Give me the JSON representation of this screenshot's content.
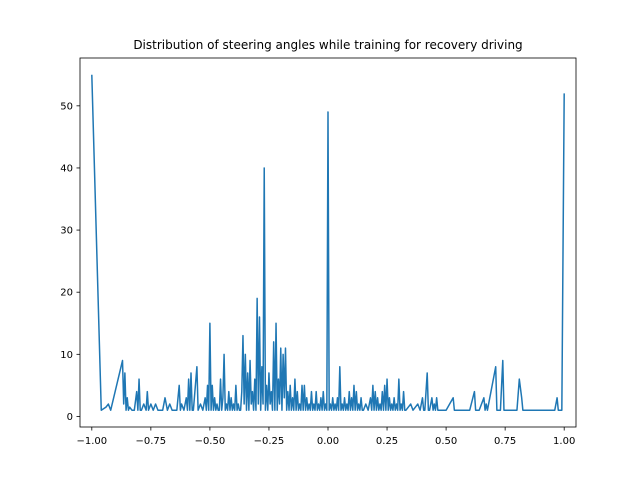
{
  "chart_data": {
    "type": "line",
    "title": "Distribution of steering angles while training for recovery driving",
    "xlabel": "",
    "ylabel": "",
    "xlim": [
      -1.05,
      1.05
    ],
    "ylim": [
      -1.7,
      57.7
    ],
    "x_ticks": [
      -1.0,
      -0.75,
      -0.5,
      -0.25,
      0.0,
      0.25,
      0.5,
      0.75,
      1.0
    ],
    "x_tick_labels": [
      "−1.00",
      "−0.75",
      "−0.50",
      "−0.25",
      "0.00",
      "0.25",
      "0.50",
      "0.75",
      "1.00"
    ],
    "y_ticks": [
      0,
      10,
      20,
      30,
      40,
      50
    ],
    "y_tick_labels": [
      "0",
      "10",
      "20",
      "30",
      "40",
      "50"
    ],
    "grid": false,
    "series": [
      {
        "color": "#1f77b4",
        "points": [
          [
            -1.0,
            55
          ],
          [
            -0.96,
            1
          ],
          [
            -0.94,
            1.5
          ],
          [
            -0.93,
            2
          ],
          [
            -0.92,
            1
          ],
          [
            -0.87,
            9
          ],
          [
            -0.865,
            2
          ],
          [
            -0.86,
            7
          ],
          [
            -0.855,
            1
          ],
          [
            -0.85,
            3
          ],
          [
            -0.845,
            1
          ],
          [
            -0.84,
            1.5
          ],
          [
            -0.83,
            1
          ],
          [
            -0.82,
            1
          ],
          [
            -0.81,
            4
          ],
          [
            -0.805,
            1
          ],
          [
            -0.8,
            6
          ],
          [
            -0.795,
            1
          ],
          [
            -0.79,
            1
          ],
          [
            -0.78,
            2
          ],
          [
            -0.77,
            1
          ],
          [
            -0.765,
            4
          ],
          [
            -0.76,
            1
          ],
          [
            -0.75,
            2
          ],
          [
            -0.74,
            1
          ],
          [
            -0.73,
            2
          ],
          [
            -0.72,
            1
          ],
          [
            -0.7,
            1
          ],
          [
            -0.69,
            3
          ],
          [
            -0.68,
            1
          ],
          [
            -0.67,
            2
          ],
          [
            -0.66,
            1
          ],
          [
            -0.65,
            1
          ],
          [
            -0.64,
            1
          ],
          [
            -0.63,
            5
          ],
          [
            -0.625,
            1
          ],
          [
            -0.62,
            2
          ],
          [
            -0.61,
            1
          ],
          [
            -0.6,
            3
          ],
          [
            -0.595,
            1
          ],
          [
            -0.59,
            6
          ],
          [
            -0.585,
            1
          ],
          [
            -0.58,
            7
          ],
          [
            -0.575,
            1
          ],
          [
            -0.57,
            1
          ],
          [
            -0.555,
            8
          ],
          [
            -0.55,
            1
          ],
          [
            -0.54,
            2
          ],
          [
            -0.53,
            1
          ],
          [
            -0.52,
            3
          ],
          [
            -0.515,
            1
          ],
          [
            -0.51,
            5
          ],
          [
            -0.505,
            1
          ],
          [
            -0.5,
            15
          ],
          [
            -0.495,
            1
          ],
          [
            -0.49,
            5
          ],
          [
            -0.485,
            1
          ],
          [
            -0.48,
            3
          ],
          [
            -0.475,
            1
          ],
          [
            -0.47,
            2
          ],
          [
            -0.465,
            1
          ],
          [
            -0.46,
            1
          ],
          [
            -0.455,
            6
          ],
          [
            -0.45,
            1
          ],
          [
            -0.445,
            3
          ],
          [
            -0.44,
            10
          ],
          [
            -0.435,
            1
          ],
          [
            -0.43,
            2
          ],
          [
            -0.425,
            1
          ],
          [
            -0.42,
            4
          ],
          [
            -0.415,
            1
          ],
          [
            -0.41,
            3
          ],
          [
            -0.405,
            1
          ],
          [
            -0.4,
            2
          ],
          [
            -0.395,
            1
          ],
          [
            -0.39,
            5
          ],
          [
            -0.385,
            1
          ],
          [
            -0.38,
            2
          ],
          [
            -0.375,
            1
          ],
          [
            -0.37,
            1
          ],
          [
            -0.365,
            4
          ],
          [
            -0.36,
            13
          ],
          [
            -0.355,
            2
          ],
          [
            -0.35,
            10
          ],
          [
            -0.345,
            1
          ],
          [
            -0.34,
            7
          ],
          [
            -0.335,
            1
          ],
          [
            -0.33,
            9
          ],
          [
            -0.325,
            2
          ],
          [
            -0.32,
            4
          ],
          [
            -0.315,
            1
          ],
          [
            -0.31,
            6
          ],
          [
            -0.305,
            1
          ],
          [
            -0.3,
            19
          ],
          [
            -0.295,
            2
          ],
          [
            -0.29,
            16
          ],
          [
            -0.285,
            1
          ],
          [
            -0.28,
            8
          ],
          [
            -0.275,
            2
          ],
          [
            -0.27,
            40
          ],
          [
            -0.265,
            1
          ],
          [
            -0.26,
            5
          ],
          [
            -0.255,
            1
          ],
          [
            -0.25,
            7
          ],
          [
            -0.245,
            2
          ],
          [
            -0.24,
            4
          ],
          [
            -0.235,
            1
          ],
          [
            -0.23,
            12
          ],
          [
            -0.225,
            1
          ],
          [
            -0.22,
            15
          ],
          [
            -0.215,
            1
          ],
          [
            -0.21,
            6
          ],
          [
            -0.205,
            2
          ],
          [
            -0.2,
            11
          ],
          [
            -0.195,
            1
          ],
          [
            -0.19,
            10
          ],
          [
            -0.185,
            3
          ],
          [
            -0.18,
            11
          ],
          [
            -0.175,
            1
          ],
          [
            -0.17,
            4
          ],
          [
            -0.165,
            1
          ],
          [
            -0.16,
            5
          ],
          [
            -0.155,
            1
          ],
          [
            -0.15,
            3
          ],
          [
            -0.145,
            1
          ],
          [
            -0.14,
            6
          ],
          [
            -0.135,
            1
          ],
          [
            -0.13,
            4
          ],
          [
            -0.125,
            1
          ],
          [
            -0.12,
            2
          ],
          [
            -0.115,
            1
          ],
          [
            -0.11,
            5
          ],
          [
            -0.105,
            1
          ],
          [
            -0.1,
            5
          ],
          [
            -0.095,
            1
          ],
          [
            -0.09,
            3
          ],
          [
            -0.085,
            1
          ],
          [
            -0.08,
            2
          ],
          [
            -0.075,
            1
          ],
          [
            -0.07,
            4
          ],
          [
            -0.065,
            1
          ],
          [
            -0.06,
            2
          ],
          [
            -0.055,
            1
          ],
          [
            -0.05,
            4
          ],
          [
            -0.045,
            1
          ],
          [
            -0.04,
            2
          ],
          [
            -0.035,
            1
          ],
          [
            -0.03,
            3
          ],
          [
            -0.025,
            1
          ],
          [
            -0.02,
            4
          ],
          [
            -0.015,
            1
          ],
          [
            -0.01,
            2
          ],
          [
            -0.005,
            1
          ],
          [
            0.0,
            49
          ],
          [
            0.005,
            1
          ],
          [
            0.01,
            2
          ],
          [
            0.015,
            1
          ],
          [
            0.02,
            3
          ],
          [
            0.025,
            1
          ],
          [
            0.03,
            2
          ],
          [
            0.035,
            1
          ],
          [
            0.04,
            3
          ],
          [
            0.045,
            1
          ],
          [
            0.05,
            8
          ],
          [
            0.055,
            1
          ],
          [
            0.06,
            2
          ],
          [
            0.065,
            1
          ],
          [
            0.07,
            3
          ],
          [
            0.075,
            1
          ],
          [
            0.08,
            2
          ],
          [
            0.085,
            1
          ],
          [
            0.09,
            4
          ],
          [
            0.095,
            1
          ],
          [
            0.1,
            3
          ],
          [
            0.105,
            1
          ],
          [
            0.11,
            5
          ],
          [
            0.115,
            1
          ],
          [
            0.12,
            4
          ],
          [
            0.125,
            1
          ],
          [
            0.13,
            2
          ],
          [
            0.135,
            1
          ],
          [
            0.14,
            3
          ],
          [
            0.145,
            1
          ],
          [
            0.15,
            1
          ],
          [
            0.16,
            2
          ],
          [
            0.17,
            1
          ],
          [
            0.18,
            3
          ],
          [
            0.185,
            1
          ],
          [
            0.19,
            5
          ],
          [
            0.195,
            1
          ],
          [
            0.2,
            4
          ],
          [
            0.205,
            1
          ],
          [
            0.21,
            3
          ],
          [
            0.215,
            1
          ],
          [
            0.22,
            2
          ],
          [
            0.225,
            1
          ],
          [
            0.23,
            4
          ],
          [
            0.235,
            1
          ],
          [
            0.24,
            5
          ],
          [
            0.245,
            1
          ],
          [
            0.25,
            6
          ],
          [
            0.255,
            1
          ],
          [
            0.26,
            3
          ],
          [
            0.265,
            1
          ],
          [
            0.27,
            2
          ],
          [
            0.275,
            1
          ],
          [
            0.28,
            3
          ],
          [
            0.285,
            1
          ],
          [
            0.29,
            2
          ],
          [
            0.295,
            1
          ],
          [
            0.3,
            6
          ],
          [
            0.305,
            1
          ],
          [
            0.31,
            2
          ],
          [
            0.315,
            1
          ],
          [
            0.32,
            4
          ],
          [
            0.325,
            1
          ],
          [
            0.33,
            1
          ],
          [
            0.35,
            2
          ],
          [
            0.36,
            1
          ],
          [
            0.38,
            2
          ],
          [
            0.39,
            1
          ],
          [
            0.4,
            3
          ],
          [
            0.405,
            1
          ],
          [
            0.41,
            1
          ],
          [
            0.42,
            7
          ],
          [
            0.425,
            1
          ],
          [
            0.43,
            1
          ],
          [
            0.44,
            3
          ],
          [
            0.445,
            1
          ],
          [
            0.45,
            2
          ],
          [
            0.455,
            1
          ],
          [
            0.46,
            3
          ],
          [
            0.465,
            1
          ],
          [
            0.5,
            1
          ],
          [
            0.53,
            3
          ],
          [
            0.535,
            1
          ],
          [
            0.6,
            1
          ],
          [
            0.62,
            4
          ],
          [
            0.625,
            1
          ],
          [
            0.64,
            1
          ],
          [
            0.66,
            3
          ],
          [
            0.665,
            1
          ],
          [
            0.67,
            2
          ],
          [
            0.675,
            1
          ],
          [
            0.71,
            8
          ],
          [
            0.715,
            1
          ],
          [
            0.73,
            1
          ],
          [
            0.74,
            9
          ],
          [
            0.745,
            1
          ],
          [
            0.8,
            1
          ],
          [
            0.81,
            6
          ],
          [
            0.82,
            3
          ],
          [
            0.825,
            1
          ],
          [
            0.96,
            1
          ],
          [
            0.97,
            3
          ],
          [
            0.975,
            1
          ],
          [
            0.99,
            1
          ],
          [
            1.0,
            52
          ]
        ]
      }
    ]
  }
}
